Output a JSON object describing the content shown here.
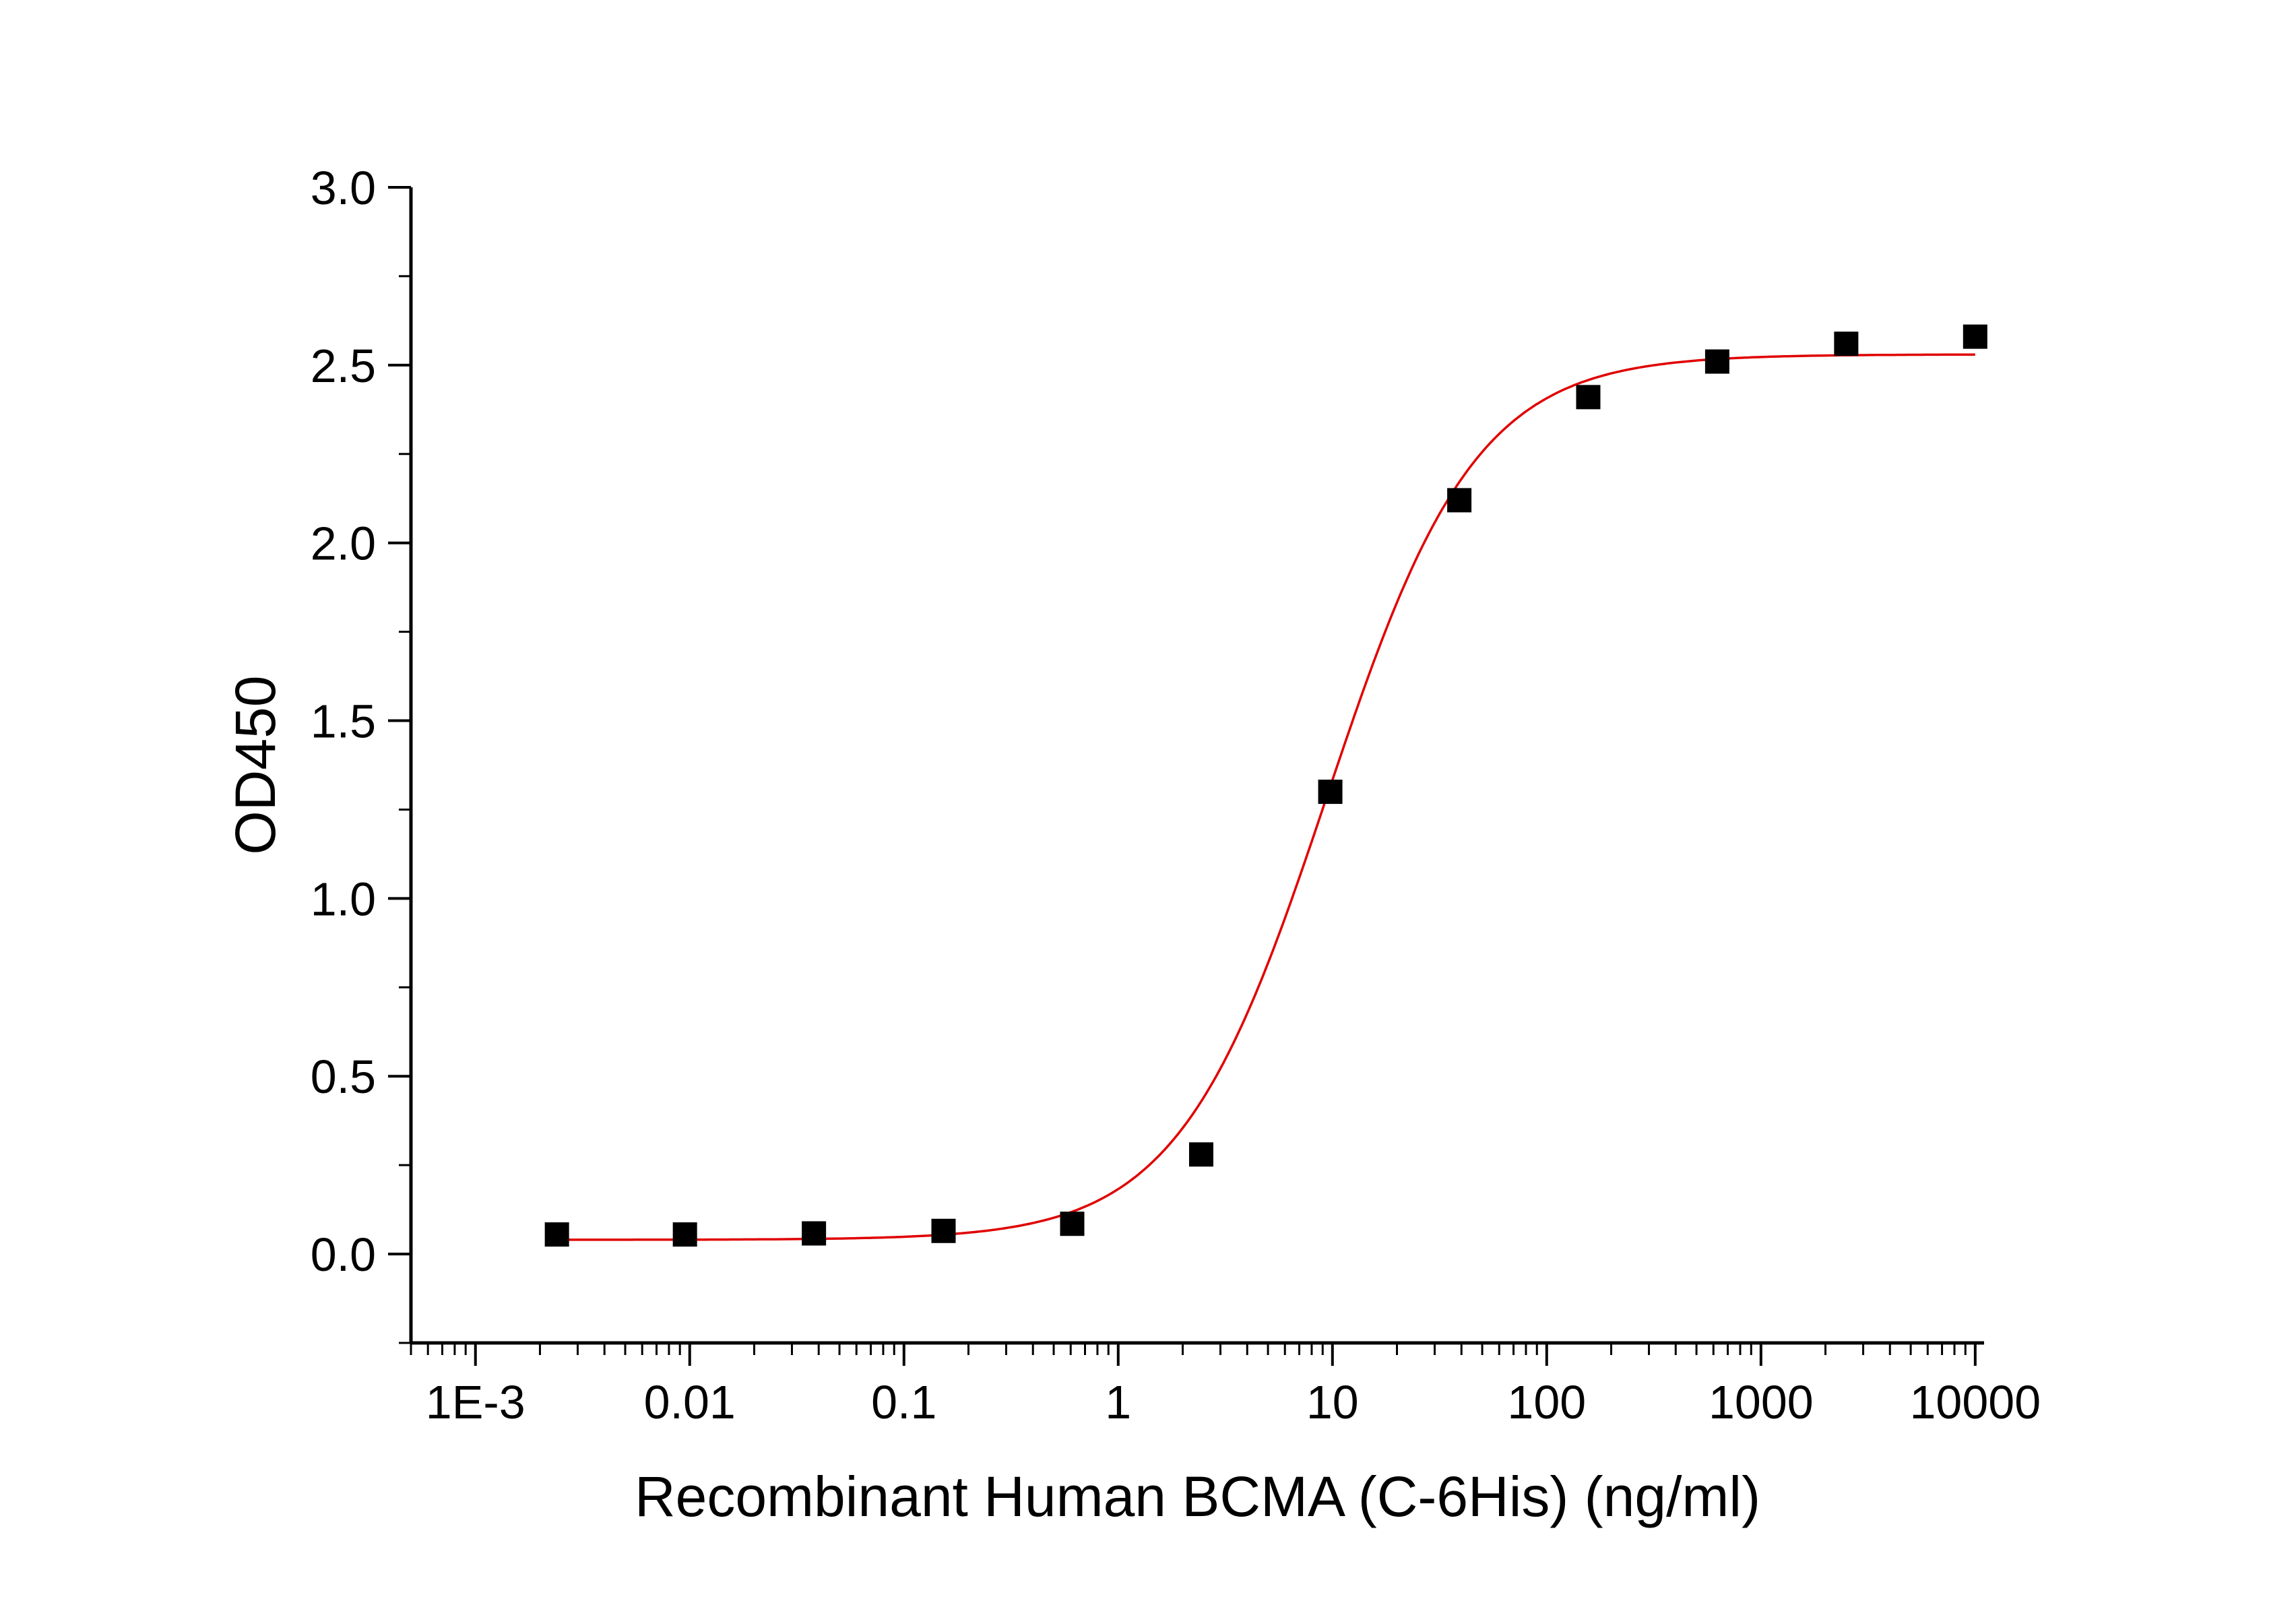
{
  "chart_data": {
    "type": "scatter",
    "title": "",
    "xlabel": "Recombinant Human BCMA (C-6His) (ng/ml)",
    "ylabel": "OD450",
    "x_scale": "log",
    "xlim": [
      0.0005,
      11000
    ],
    "ylim": [
      -0.25,
      3.0
    ],
    "x_ticks": [
      {
        "value": 0.001,
        "label": "1E-3"
      },
      {
        "value": 0.01,
        "label": "0.01"
      },
      {
        "value": 0.1,
        "label": "0.1"
      },
      {
        "value": 1,
        "label": "1"
      },
      {
        "value": 10,
        "label": "10"
      },
      {
        "value": 100,
        "label": "100"
      },
      {
        "value": 1000,
        "label": "1000"
      },
      {
        "value": 10000,
        "label": "10000"
      }
    ],
    "y_ticks": [
      {
        "value": 0.0,
        "label": "0.0"
      },
      {
        "value": 0.5,
        "label": "0.5"
      },
      {
        "value": 1.0,
        "label": "1.0"
      },
      {
        "value": 1.5,
        "label": "1.5"
      },
      {
        "value": 2.0,
        "label": "2.0"
      },
      {
        "value": 2.5,
        "label": "2.5"
      },
      {
        "value": 3.0,
        "label": "3.0"
      }
    ],
    "grid": false,
    "legend": "none",
    "series": [
      {
        "kind": "points",
        "marker": "square",
        "color": "#000000",
        "x": [
          0.0024,
          0.0095,
          0.038,
          0.153,
          0.61,
          2.44,
          9.77,
          39.1,
          156.3,
          625,
          2500,
          10000
        ],
        "y": [
          0.055,
          0.055,
          0.058,
          0.065,
          0.085,
          0.28,
          1.3,
          2.12,
          2.41,
          2.51,
          2.56,
          2.58
        ]
      },
      {
        "kind": "fit-curve",
        "color": "#e00000",
        "model": "four-parameter-logistic",
        "bottom": 0.04,
        "top": 2.53,
        "ec50": 9.4,
        "hill": 1.25,
        "x_range": [
          0.0024,
          10000
        ]
      }
    ]
  }
}
